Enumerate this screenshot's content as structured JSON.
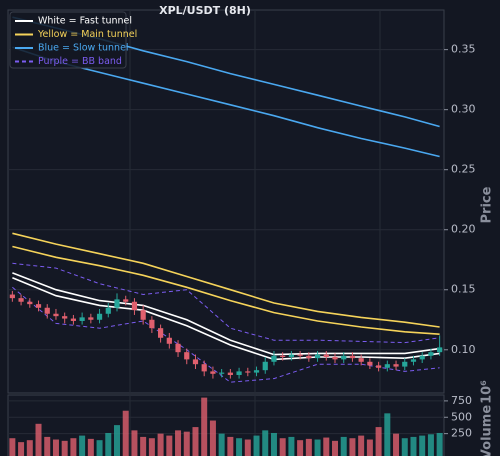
{
  "chart_data": [
    {
      "type": "candlestick",
      "title": "XPL/USDT (8H)",
      "ylabel": "Price",
      "ylim": [
        0.064,
        0.383
      ],
      "yticks": [
        {
          "value": 0.1,
          "label": "0.10"
        },
        {
          "value": 0.15,
          "label": "0.15"
        },
        {
          "value": 0.2,
          "label": "0.20"
        },
        {
          "value": 0.25,
          "label": "0.25"
        },
        {
          "value": 0.3,
          "label": "0.30"
        },
        {
          "value": 0.35,
          "label": "0.35"
        }
      ],
      "grid": true,
      "legend": "upper left",
      "up_color": "#26a69a",
      "down_color": "#e0606e",
      "open": [
        0.146,
        0.143,
        0.14,
        0.138,
        0.135,
        0.13,
        0.128,
        0.126,
        0.124,
        0.127,
        0.125,
        0.13,
        0.135,
        0.142,
        0.14,
        0.133,
        0.125,
        0.118,
        0.11,
        0.105,
        0.098,
        0.092,
        0.088,
        0.082,
        0.08,
        0.081,
        0.079,
        0.082,
        0.081,
        0.083,
        0.09,
        0.095,
        0.094,
        0.096,
        0.095,
        0.093,
        0.096,
        0.094,
        0.092,
        0.095,
        0.093,
        0.09,
        0.087,
        0.085,
        0.088,
        0.086,
        0.09,
        0.092,
        0.095,
        0.098
      ],
      "high": [
        0.149,
        0.146,
        0.143,
        0.141,
        0.138,
        0.134,
        0.131,
        0.129,
        0.131,
        0.13,
        0.134,
        0.139,
        0.147,
        0.145,
        0.143,
        0.137,
        0.128,
        0.121,
        0.114,
        0.108,
        0.101,
        0.096,
        0.091,
        0.086,
        0.084,
        0.084,
        0.085,
        0.085,
        0.086,
        0.094,
        0.099,
        0.098,
        0.099,
        0.099,
        0.098,
        0.099,
        0.099,
        0.097,
        0.098,
        0.098,
        0.096,
        0.093,
        0.09,
        0.091,
        0.091,
        0.093,
        0.095,
        0.098,
        0.101,
        0.112
      ],
      "low": [
        0.14,
        0.137,
        0.135,
        0.132,
        0.126,
        0.125,
        0.122,
        0.121,
        0.121,
        0.122,
        0.122,
        0.127,
        0.132,
        0.137,
        0.129,
        0.121,
        0.114,
        0.106,
        0.101,
        0.094,
        0.088,
        0.084,
        0.078,
        0.076,
        0.077,
        0.076,
        0.076,
        0.078,
        0.078,
        0.08,
        0.087,
        0.091,
        0.091,
        0.092,
        0.09,
        0.09,
        0.091,
        0.089,
        0.089,
        0.09,
        0.087,
        0.084,
        0.082,
        0.082,
        0.083,
        0.083,
        0.087,
        0.089,
        0.092,
        0.095
      ],
      "close": [
        0.143,
        0.14,
        0.138,
        0.135,
        0.13,
        0.128,
        0.126,
        0.124,
        0.127,
        0.125,
        0.13,
        0.135,
        0.142,
        0.14,
        0.133,
        0.125,
        0.118,
        0.11,
        0.105,
        0.098,
        0.092,
        0.088,
        0.082,
        0.08,
        0.081,
        0.079,
        0.082,
        0.081,
        0.083,
        0.09,
        0.095,
        0.094,
        0.096,
        0.095,
        0.093,
        0.096,
        0.094,
        0.092,
        0.095,
        0.093,
        0.09,
        0.087,
        0.085,
        0.088,
        0.086,
        0.09,
        0.092,
        0.095,
        0.098,
        0.102
      ],
      "bands": [
        {
          "name": "White = Fast tunnel",
          "color": "#ffffff",
          "x": [
            0,
            5,
            10,
            15,
            20,
            25,
            30,
            35,
            40,
            45,
            49
          ],
          "upper": [
            0.164,
            0.15,
            0.141,
            0.137,
            0.125,
            0.108,
            0.096,
            0.097,
            0.097,
            0.097,
            0.101
          ],
          "lower": [
            0.16,
            0.145,
            0.137,
            0.133,
            0.12,
            0.104,
            0.092,
            0.094,
            0.094,
            0.093,
            0.097
          ]
        },
        {
          "name": "Yellow = Main tunnel",
          "color": "#f5d35a",
          "x": [
            0,
            5,
            10,
            15,
            20,
            25,
            30,
            35,
            40,
            45,
            49
          ],
          "upper": [
            0.197,
            0.188,
            0.18,
            0.172,
            0.161,
            0.15,
            0.139,
            0.132,
            0.127,
            0.123,
            0.119
          ],
          "lower": [
            0.186,
            0.177,
            0.17,
            0.162,
            0.152,
            0.141,
            0.131,
            0.124,
            0.119,
            0.115,
            0.113
          ]
        },
        {
          "name": "Blue = Slow tunnel",
          "color": "#4aa8f0",
          "x": [
            0,
            5,
            10,
            15,
            20,
            25,
            30,
            35,
            40,
            45,
            49
          ],
          "upper": [
            0.377,
            0.368,
            0.359,
            0.349,
            0.34,
            0.33,
            0.321,
            0.312,
            0.303,
            0.294,
            0.286
          ],
          "lower": [
            0.352,
            0.34,
            0.331,
            0.322,
            0.313,
            0.304,
            0.295,
            0.285,
            0.276,
            0.268,
            0.261
          ]
        },
        {
          "name": "Purple = BB band",
          "color": "#7b5cf0",
          "dashed": true,
          "x": [
            0,
            5,
            10,
            15,
            20,
            25,
            30,
            35,
            40,
            45,
            49
          ],
          "upper": [
            0.172,
            0.168,
            0.155,
            0.146,
            0.15,
            0.118,
            0.108,
            0.108,
            0.107,
            0.106,
            0.11
          ],
          "lower": [
            0.152,
            0.122,
            0.118,
            0.124,
            0.1,
            0.073,
            0.076,
            0.088,
            0.088,
            0.082,
            0.085
          ]
        }
      ]
    },
    {
      "type": "bar",
      "ylabel": "Volume",
      "offset_label": "10⁶",
      "ylim": [
        0,
        840
      ],
      "yticks": [
        250,
        500,
        750
      ],
      "grid": true,
      "values": [
        180,
        120,
        150,
        400,
        200,
        160,
        140,
        180,
        220,
        170,
        150,
        260,
        380,
        600,
        300,
        200,
        180,
        250,
        220,
        300,
        280,
        350,
        800,
        450,
        250,
        200,
        180,
        160,
        220,
        300,
        260,
        180,
        200,
        150,
        170,
        160,
        190,
        140,
        200,
        180,
        220,
        160,
        350,
        560,
        250,
        180,
        200,
        220,
        240,
        260
      ]
    }
  ]
}
